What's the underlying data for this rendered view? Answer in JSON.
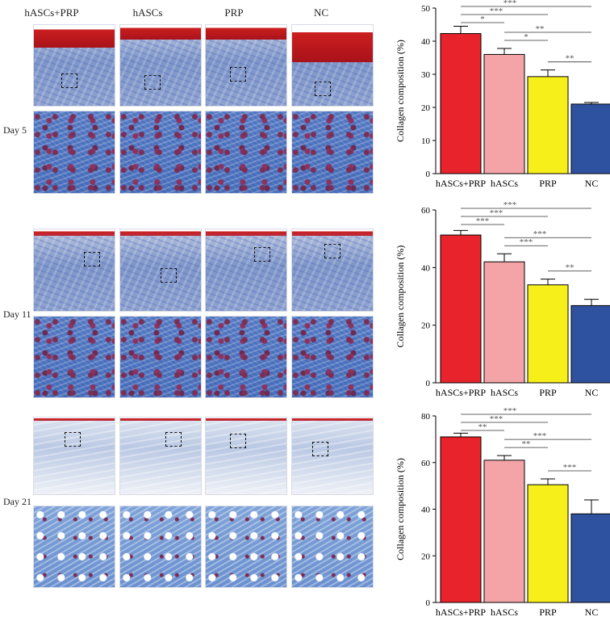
{
  "columns": [
    "hASCs+PRP",
    "hASCs",
    "PRP",
    "NC"
  ],
  "rows": [
    "Day 5",
    "Day 11",
    "Day 21"
  ],
  "colors": {
    "hASCs+PRP": "#e8232b",
    "hASCs": "#f4a3a7",
    "PRP": "#f7ef1a",
    "NC": "#2f52a0",
    "collagen_stain": "#5a7fc7",
    "keratin_stain": "#cc1f1f"
  },
  "chart_data": [
    {
      "type": "bar",
      "categories": [
        "hASCs+PRP",
        "hASCs",
        "PRP",
        "NC"
      ],
      "values": [
        42.3,
        36.0,
        29.3,
        21.0
      ],
      "errors": [
        2.2,
        1.8,
        2.0,
        0.5
      ],
      "ylabel": "Collagen composition (%)",
      "ylim": [
        0,
        50
      ],
      "yticks": [
        0,
        10,
        20,
        30,
        40,
        50
      ],
      "significance": [
        {
          "from": "hASCs+PRP",
          "to": "hASCs",
          "label": "*"
        },
        {
          "from": "hASCs+PRP",
          "to": "PRP",
          "label": "***"
        },
        {
          "from": "hASCs+PRP",
          "to": "NC",
          "label": "***"
        },
        {
          "from": "hASCs",
          "to": "PRP",
          "label": "*"
        },
        {
          "from": "hASCs",
          "to": "NC",
          "label": "**"
        },
        {
          "from": "PRP",
          "to": "NC",
          "label": "**"
        }
      ]
    },
    {
      "type": "bar",
      "categories": [
        "hASCs+PRP",
        "hASCs",
        "PRP",
        "NC"
      ],
      "values": [
        51.3,
        42.0,
        34.0,
        26.8
      ],
      "errors": [
        1.6,
        2.8,
        2.0,
        2.2
      ],
      "ylabel": "Collagen composition (%)",
      "ylim": [
        0,
        60
      ],
      "yticks": [
        0,
        20,
        40,
        60
      ],
      "significance": [
        {
          "from": "hASCs+PRP",
          "to": "hASCs",
          "label": "***"
        },
        {
          "from": "hASCs+PRP",
          "to": "PRP",
          "label": "***"
        },
        {
          "from": "hASCs+PRP",
          "to": "NC",
          "label": "***"
        },
        {
          "from": "hASCs",
          "to": "PRP",
          "label": "***"
        },
        {
          "from": "hASCs",
          "to": "NC",
          "label": "***"
        },
        {
          "from": "PRP",
          "to": "NC",
          "label": "**"
        }
      ]
    },
    {
      "type": "bar",
      "categories": [
        "hASCs+PRP",
        "hASCs",
        "PRP",
        "NC"
      ],
      "values": [
        71.0,
        61.0,
        50.5,
        38.0
      ],
      "errors": [
        1.6,
        2.0,
        2.5,
        6.0
      ],
      "ylabel": "Collagen composition (%)",
      "ylim": [
        0,
        80
      ],
      "yticks": [
        0,
        20,
        40,
        60,
        80
      ],
      "significance": [
        {
          "from": "hASCs+PRP",
          "to": "hASCs",
          "label": "**"
        },
        {
          "from": "hASCs+PRP",
          "to": "PRP",
          "label": "***"
        },
        {
          "from": "hASCs+PRP",
          "to": "NC",
          "label": "***"
        },
        {
          "from": "hASCs",
          "to": "PRP",
          "label": "**"
        },
        {
          "from": "hASCs",
          "to": "NC",
          "label": "***"
        },
        {
          "from": "PRP",
          "to": "NC",
          "label": "***"
        }
      ]
    }
  ]
}
